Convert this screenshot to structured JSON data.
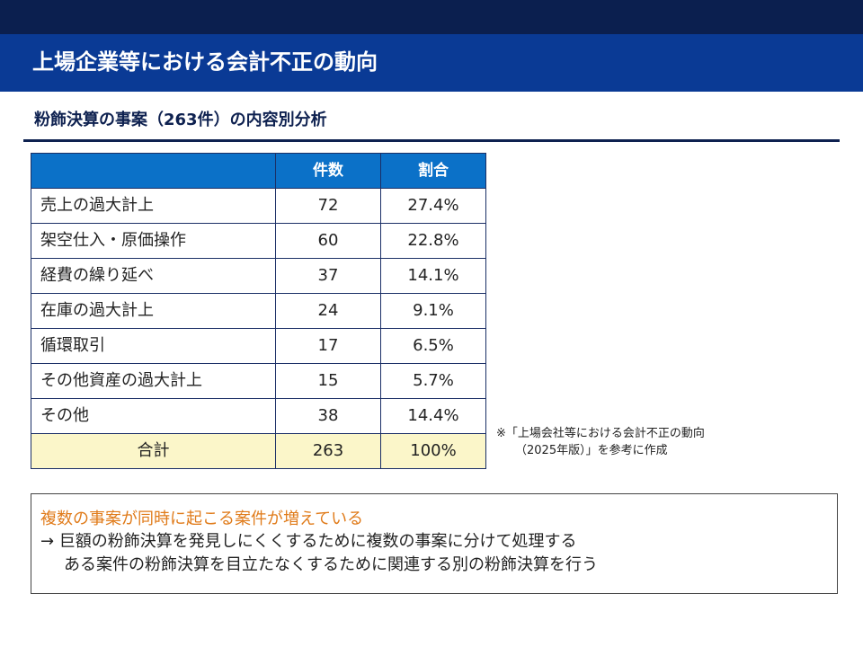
{
  "header": {
    "title": "上場企業等における会計不正の動向"
  },
  "section": {
    "subtitle": "粉飾決算の事案（263件）の内容別分析"
  },
  "table": {
    "columns": [
      "",
      "件数",
      "割合"
    ],
    "rows": [
      {
        "label": "売上の過大計上",
        "count": "72",
        "share": "27.4%"
      },
      {
        "label": "架空仕入・原価操作",
        "count": "60",
        "share": "22.8%"
      },
      {
        "label": "経費の繰り延べ",
        "count": "37",
        "share": "14.1%"
      },
      {
        "label": "在庫の過大計上",
        "count": "24",
        "share": "9.1%"
      },
      {
        "label": "循環取引",
        "count": "17",
        "share": "6.5%"
      },
      {
        "label": "その他資産の過大計上",
        "count": "15",
        "share": "5.7%"
      },
      {
        "label": "その他",
        "count": "38",
        "share": "14.4%"
      }
    ],
    "total": {
      "label": "合計",
      "count": "263",
      "share": "100%"
    }
  },
  "source_note": {
    "line1": "※「上場会社等における会計不正の動向",
    "line2": "（2025年版）」を参考に作成"
  },
  "callout": {
    "headline": "複数の事案が同時に起こる案件が増えている",
    "point1": "→ 巨額の粉飾決算を発見しにくくするために複数の事案に分けて処理する",
    "point2": "ある案件の粉飾決算を目立たなくするために関連する別の粉飾決算を行う"
  },
  "colors": {
    "title_bar": "#0a3a95",
    "top_strip": "#0b1f4f",
    "table_header": "#0b71c8",
    "total_row": "#fbf6c9",
    "headline_accent": "#e07b1a"
  }
}
